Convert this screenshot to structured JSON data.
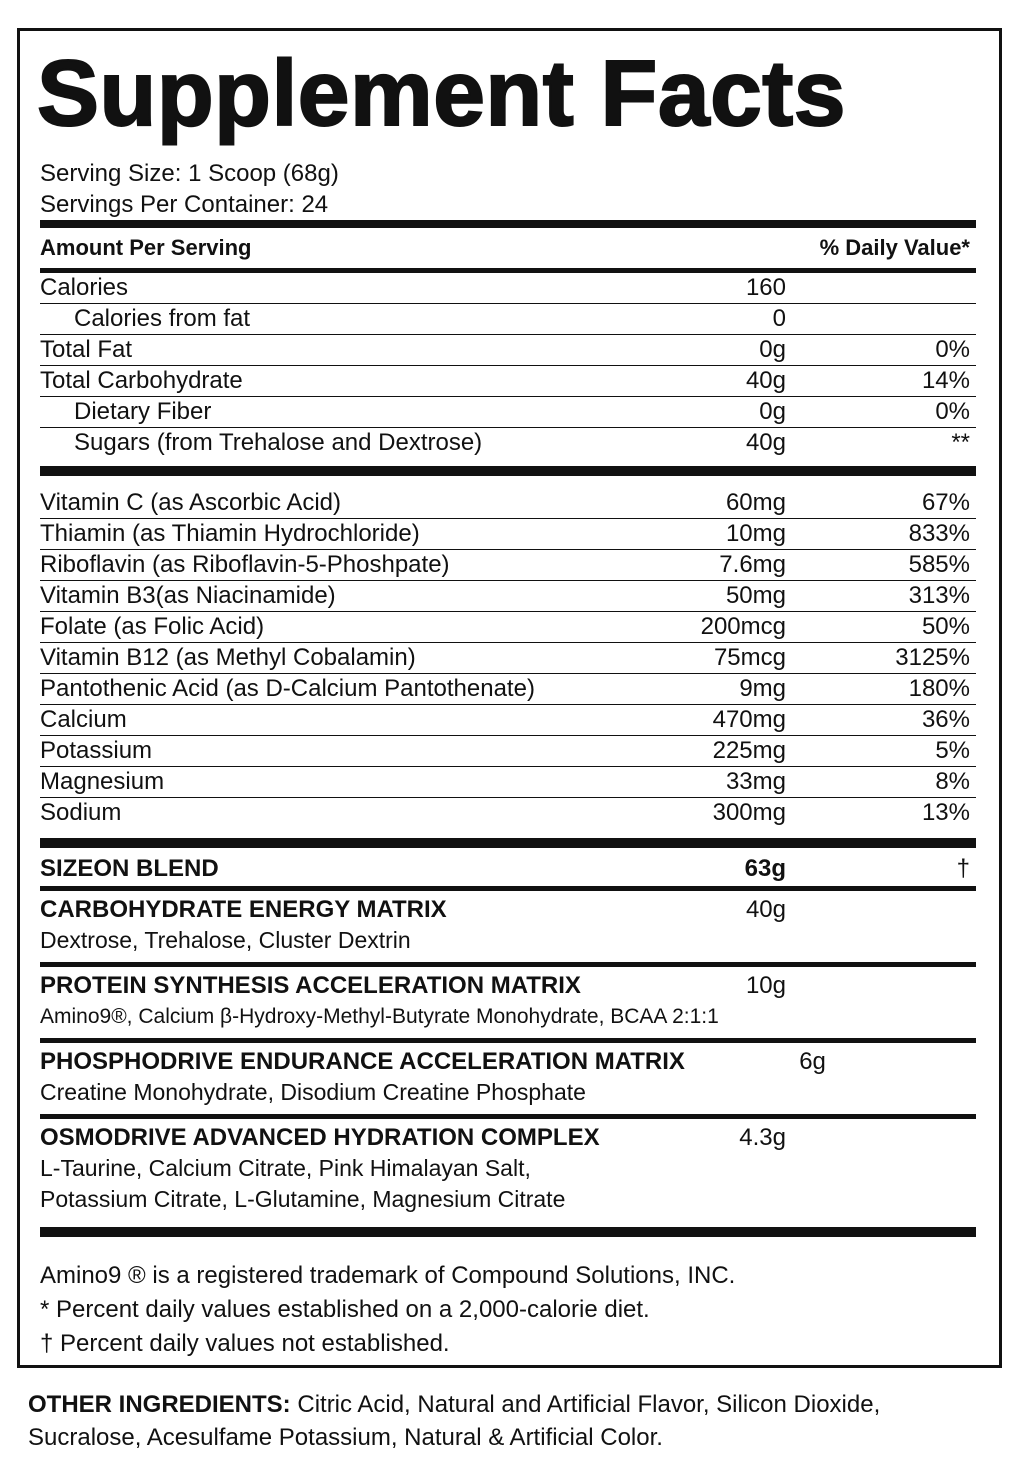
{
  "title": "Supplement Facts",
  "serving_size": "Serving Size: 1 Scoop (68g)",
  "servings_per_container": "Servings Per Container: 24",
  "header": {
    "left": "Amount Per Serving",
    "right": "% Daily Value*"
  },
  "macros": [
    {
      "name": "Calories",
      "amount": "160",
      "sub": [
        {
          "name": "Calories from fat",
          "amount": "0"
        }
      ]
    },
    {
      "name": "Total Fat",
      "amount": "0g",
      "dv": "0%"
    },
    {
      "name": "Total Carbohydrate",
      "amount": "40g",
      "dv": "14%",
      "sub": [
        {
          "name": "Dietary Fiber",
          "amount": "0g",
          "dv": "0%"
        },
        {
          "name": "Sugars (from Trehalose and Dextrose)",
          "amount": "40g",
          "dv": "**"
        }
      ]
    }
  ],
  "vitamins": [
    {
      "name": "Vitamin C (as Ascorbic Acid)",
      "amount": "60mg",
      "dv": "67%"
    },
    {
      "name": "Thiamin (as Thiamin Hydrochloride)",
      "amount": "10mg",
      "dv": "833%"
    },
    {
      "name": "Riboflavin (as Riboflavin-5-Phoshpate)",
      "amount": "7.6mg",
      "dv": "585%"
    },
    {
      "name": "Vitamin B3(as Niacinamide)",
      "amount": "50mg",
      "dv": "313%"
    },
    {
      "name": "Folate (as Folic Acid)",
      "amount": "200mcg",
      "dv": "50%"
    },
    {
      "name": "Vitamin B12 (as Methyl Cobalamin)",
      "amount": "75mcg",
      "dv": "3125%"
    },
    {
      "name": "Pantothenic Acid (as D-Calcium Pantothenate)",
      "amount": "9mg",
      "dv": "180%"
    },
    {
      "name": "Calcium",
      "amount": "470mg",
      "dv": "36%"
    },
    {
      "name": "Potassium",
      "amount": "225mg",
      "dv": "5%"
    },
    {
      "name": "Magnesium",
      "amount": "33mg",
      "dv": "8%"
    },
    {
      "name": "Sodium",
      "amount": "300mg",
      "dv": "13%"
    }
  ],
  "blend": {
    "name": "SIZEON BLEND",
    "amount": "63g",
    "dv": "†",
    "matrices": [
      {
        "name": "CARBOHYDRATE ENERGY MATRIX",
        "amount": "40g",
        "ingredients": [
          "Dextrose, Trehalose, Cluster Dextrin"
        ]
      },
      {
        "name": "PROTEIN SYNTHESIS ACCELERATION MATRIX",
        "amount": "10g",
        "ingredients": [
          "Amino9®, Calcium β-Hydroxy-Methyl-Butyrate Monohydrate, BCAA 2:1:1"
        ]
      },
      {
        "name": "PHOSPHODRIVE ENDURANCE ACCELERATION MATRIX",
        "amount": "6g",
        "ingredients": [
          "Creatine Monohydrate, Disodium Creatine Phosphate"
        ]
      },
      {
        "name": "OSMODRIVE ADVANCED HYDRATION COMPLEX",
        "amount": "4.3g",
        "ingredients": [
          "L-Taurine, Calcium Citrate, Pink Himalayan Salt,",
          "Potassium Citrate, L-Glutamine, Magnesium Citrate"
        ]
      }
    ]
  },
  "footnotes": [
    "Amino9 ® is a registered trademark of Compound Solutions, INC.",
    "* Percent daily values established on a 2,000-calorie diet.",
    "† Percent daily values not established."
  ],
  "other_ingredients": {
    "label": "OTHER INGREDIENTS:",
    "text": "Citric Acid, Natural and Artificial Flavor, Silicon Dioxide, Sucralose, Acesulfame Potassium, Natural & Artificial Color."
  }
}
